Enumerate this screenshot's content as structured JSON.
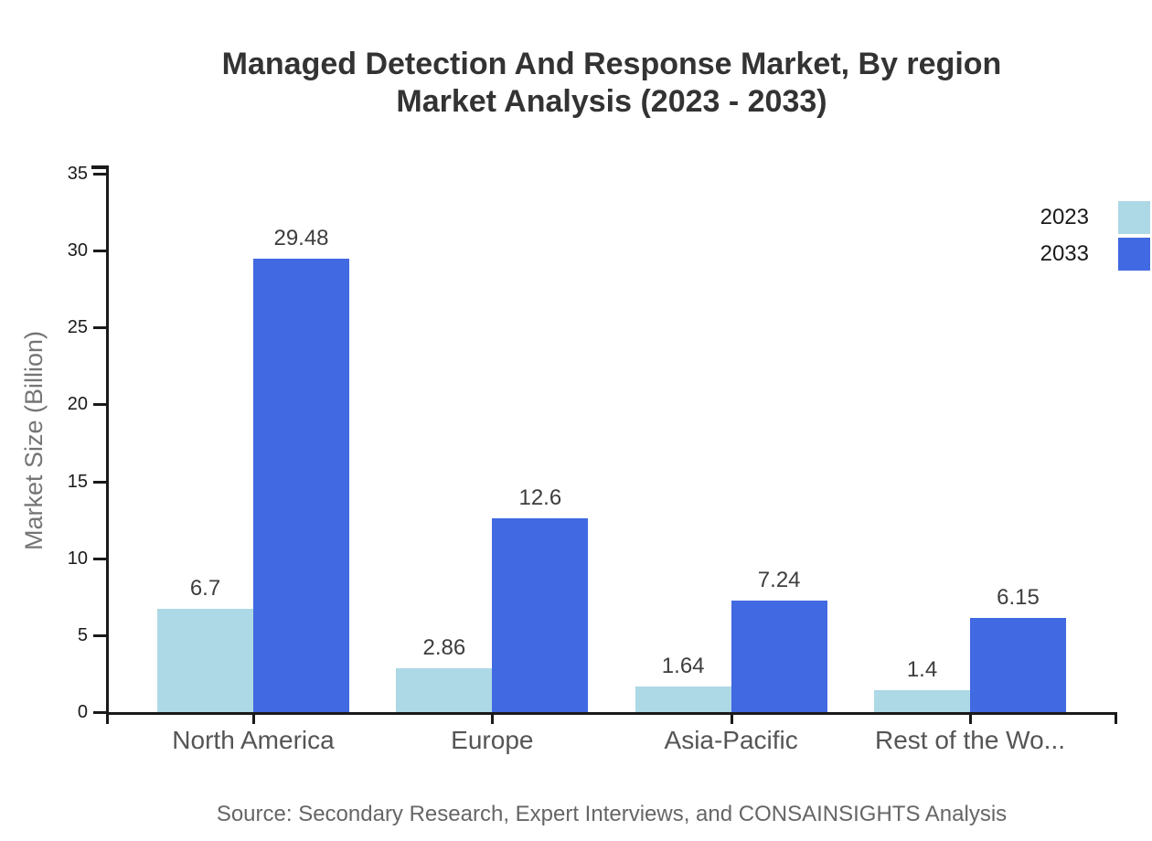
{
  "title": {
    "line1": "Managed Detection And Response Market, By region",
    "line2": "Market Analysis (2023 - 2033)"
  },
  "source": "Source: Secondary Research, Expert Interviews, and CONSAINSIGHTS Analysis",
  "legend": {
    "items": [
      {
        "label": "2023",
        "color": "#add8e6"
      },
      {
        "label": "2033",
        "color": "#4169e1"
      }
    ]
  },
  "chart_data": {
    "type": "bar",
    "categories": [
      "North America",
      "Europe",
      "Asia-Pacific",
      "Rest of the Wo..."
    ],
    "series": [
      {
        "name": "2023",
        "color": "#add8e6",
        "values": [
          6.7,
          2.86,
          1.64,
          1.4
        ]
      },
      {
        "name": "2033",
        "color": "#4169e1",
        "values": [
          29.48,
          12.6,
          7.24,
          6.15
        ]
      }
    ],
    "title": "Managed Detection And Response Market, By region Market Analysis (2023 - 2033)",
    "xlabel": "",
    "ylabel": "Market Size (Billion)",
    "ylim": [
      0,
      35
    ],
    "yticks": [
      0,
      5,
      10,
      15,
      20,
      25,
      30,
      35
    ],
    "grid": false,
    "value_labels": true,
    "legend_position": "top-right"
  },
  "colors": {
    "axis": "#1a1a1a",
    "title": "#333333",
    "y_tick_label": "#1a1a1a",
    "value_label": "#3d3d3d",
    "category_label": "#555555",
    "axis_label": "#757575",
    "source": "#666666",
    "background": "#ffffff"
  }
}
